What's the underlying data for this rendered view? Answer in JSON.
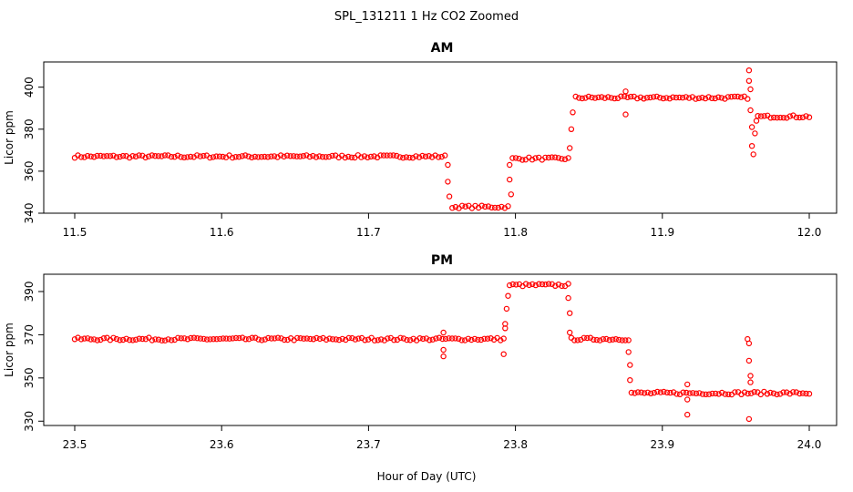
{
  "figure": {
    "title": "SPL_131211  1 Hz CO2 Zoomed",
    "xlabel": "Hour of Day (UTC)"
  },
  "chart_data": [
    {
      "type": "scatter",
      "title": "AM",
      "ylabel": "Licor ppm",
      "xlim": [
        11.5,
        12.0
      ],
      "ylim": [
        340,
        412
      ],
      "xticks": [
        "11.5",
        "11.6",
        "11.7",
        "11.8",
        "11.9",
        "12.0"
      ],
      "xtick_values": [
        11.5,
        11.6,
        11.7,
        11.8,
        11.9,
        12.0
      ],
      "yticks": [
        "340",
        "360",
        "380",
        "400"
      ],
      "ytick_values": [
        340,
        360,
        380,
        400
      ],
      "color": "#ff0000",
      "segments": [
        {
          "x_start": 11.5,
          "x_end": 11.752,
          "y": 367
        },
        {
          "x_start": 11.757,
          "x_end": 11.795,
          "y": 343
        },
        {
          "x_start": 11.798,
          "x_end": 11.836,
          "y": 366
        },
        {
          "x_start": 11.841,
          "x_end": 11.958,
          "y": 395
        },
        {
          "x_start": 11.965,
          "x_end": 12.0,
          "y": 386
        }
      ],
      "outliers": [
        {
          "x": 11.754,
          "y": 363
        },
        {
          "x": 11.754,
          "y": 355
        },
        {
          "x": 11.755,
          "y": 348
        },
        {
          "x": 11.796,
          "y": 363
        },
        {
          "x": 11.796,
          "y": 356
        },
        {
          "x": 11.797,
          "y": 349
        },
        {
          "x": 11.837,
          "y": 371
        },
        {
          "x": 11.838,
          "y": 380
        },
        {
          "x": 11.839,
          "y": 388
        },
        {
          "x": 11.875,
          "y": 398
        },
        {
          "x": 11.875,
          "y": 387
        },
        {
          "x": 11.959,
          "y": 408
        },
        {
          "x": 11.959,
          "y": 403
        },
        {
          "x": 11.96,
          "y": 399
        },
        {
          "x": 11.96,
          "y": 389
        },
        {
          "x": 11.961,
          "y": 381
        },
        {
          "x": 11.961,
          "y": 372
        },
        {
          "x": 11.962,
          "y": 368
        },
        {
          "x": 11.963,
          "y": 378
        },
        {
          "x": 11.964,
          "y": 384
        }
      ]
    },
    {
      "type": "scatter",
      "title": "PM",
      "ylabel": "Licor ppm",
      "xlim": [
        23.5,
        24.0
      ],
      "ylim": [
        328,
        398
      ],
      "xticks": [
        "23.5",
        "23.6",
        "23.7",
        "23.8",
        "23.9",
        "24.0"
      ],
      "xtick_values": [
        23.5,
        23.6,
        23.7,
        23.8,
        23.9,
        24.0
      ],
      "yticks": [
        "330",
        "350",
        "370",
        "390"
      ],
      "ytick_values": [
        330,
        350,
        370,
        390
      ],
      "color": "#ff0000",
      "segments": [
        {
          "x_start": 23.5,
          "x_end": 23.792,
          "y": 368
        },
        {
          "x_start": 23.796,
          "x_end": 23.836,
          "y": 393
        },
        {
          "x_start": 23.838,
          "x_end": 23.877,
          "y": 368
        },
        {
          "x_start": 23.879,
          "x_end": 24.0,
          "y": 343
        }
      ],
      "outliers": [
        {
          "x": 23.751,
          "y": 371
        },
        {
          "x": 23.751,
          "y": 363
        },
        {
          "x": 23.751,
          "y": 360
        },
        {
          "x": 23.792,
          "y": 361
        },
        {
          "x": 23.793,
          "y": 373
        },
        {
          "x": 23.793,
          "y": 375
        },
        {
          "x": 23.794,
          "y": 382
        },
        {
          "x": 23.795,
          "y": 388
        },
        {
          "x": 23.836,
          "y": 387
        },
        {
          "x": 23.837,
          "y": 380
        },
        {
          "x": 23.837,
          "y": 371
        },
        {
          "x": 23.877,
          "y": 362
        },
        {
          "x": 23.878,
          "y": 356
        },
        {
          "x": 23.878,
          "y": 349
        },
        {
          "x": 23.917,
          "y": 347
        },
        {
          "x": 23.917,
          "y": 340
        },
        {
          "x": 23.917,
          "y": 333
        },
        {
          "x": 23.958,
          "y": 368
        },
        {
          "x": 23.959,
          "y": 366
        },
        {
          "x": 23.959,
          "y": 358
        },
        {
          "x": 23.96,
          "y": 351
        },
        {
          "x": 23.96,
          "y": 348
        },
        {
          "x": 23.959,
          "y": 331
        }
      ]
    }
  ]
}
